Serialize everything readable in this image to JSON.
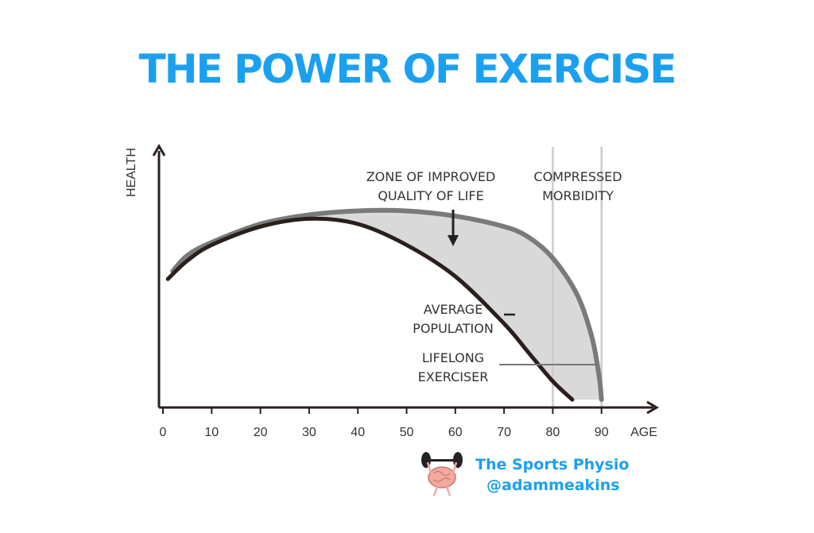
{
  "title": "THE POWER OF EXERCISE",
  "brand": {
    "name": "The Sports Physio",
    "handle": "@adammeakins"
  },
  "colors": {
    "title": "#1ba0f0",
    "average": "#2a1f1c",
    "exerciser": "#7a7a7a",
    "zone_fill": "#d9d9d9",
    "axis": "#2a1f1c",
    "vline": "#cccccc"
  },
  "icons": [
    "brain-weightlifter-icon"
  ],
  "chart_data": {
    "type": "line",
    "xlabel": "AGE",
    "ylabel": "HEALTH",
    "xlim": [
      0,
      100
    ],
    "ylim": [
      0,
      100
    ],
    "x_ticks": [
      0,
      10,
      20,
      30,
      40,
      50,
      60,
      70,
      80,
      90
    ],
    "grid": false,
    "vertical_lines": [
      80,
      90
    ],
    "series": [
      {
        "key": "average",
        "x": [
          1,
          5,
          10,
          20,
          30,
          40,
          50,
          60,
          70,
          75,
          80,
          84
        ],
        "y": [
          49,
          56,
          62,
          69,
          72,
          70,
          62,
          50,
          32,
          21,
          10,
          3
        ]
      },
      {
        "key": "exerciser",
        "x": [
          2,
          5,
          10,
          20,
          30,
          40,
          50,
          60,
          70,
          75,
          80,
          85,
          88,
          89.5,
          90
        ],
        "y": [
          52,
          58,
          63,
          70,
          73.5,
          75,
          75,
          73,
          69,
          65,
          57,
          43,
          27,
          12,
          3
        ]
      }
    ],
    "annotations": {
      "zone": [
        "ZONE OF IMPROVED",
        "QUALITY OF LIFE"
      ],
      "compressed": [
        "COMPRESSED",
        "MORBIDITY"
      ],
      "average": [
        "AVERAGE",
        "POPULATION"
      ],
      "exerciser": [
        "LIFELONG",
        "EXERCISER"
      ]
    }
  }
}
